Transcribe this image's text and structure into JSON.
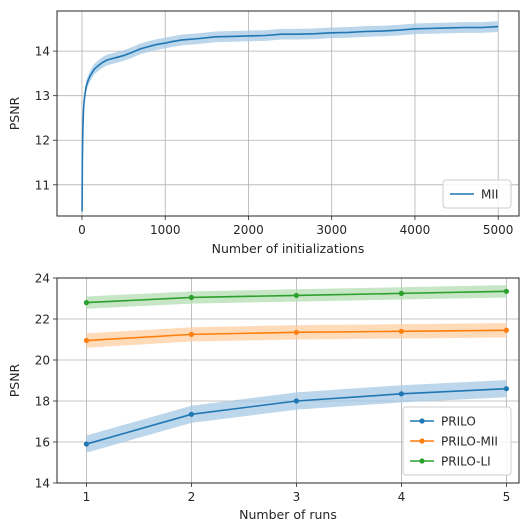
{
  "chart_data": [
    {
      "type": "line",
      "xlabel": "Number of initializations",
      "ylabel": "PSNR",
      "xlim": [
        -300,
        5250
      ],
      "ylim": [
        10.3,
        14.9
      ],
      "xticks": [
        0,
        1000,
        2000,
        3000,
        4000,
        5000
      ],
      "yticks": [
        11,
        12,
        13,
        14
      ],
      "grid": true,
      "legend_placement": "lower-right",
      "series": [
        {
          "name": "MII",
          "color": "#1f77b4",
          "band_color": "#a6c8e4",
          "x": [
            1,
            5,
            10,
            20,
            30,
            50,
            75,
            100,
            150,
            200,
            250,
            300,
            400,
            500,
            600,
            700,
            800,
            900,
            1000,
            1100,
            1200,
            1400,
            1600,
            1800,
            2000,
            2200,
            2400,
            2600,
            2800,
            3000,
            3200,
            3400,
            3600,
            3800,
            4000,
            4200,
            4400,
            4600,
            4800,
            5000
          ],
          "y": [
            10.4,
            11.6,
            12.2,
            12.75,
            12.95,
            13.2,
            13.35,
            13.45,
            13.6,
            13.68,
            13.75,
            13.8,
            13.85,
            13.9,
            13.97,
            14.05,
            14.1,
            14.15,
            14.18,
            14.22,
            14.25,
            14.28,
            14.32,
            14.33,
            14.34,
            14.35,
            14.38,
            14.38,
            14.39,
            14.41,
            14.42,
            14.44,
            14.45,
            14.47,
            14.5,
            14.51,
            14.52,
            14.53,
            14.53,
            14.55
          ],
          "band": 0.12
        }
      ]
    },
    {
      "type": "line",
      "xlabel": "Number of runs",
      "ylabel": "PSNR",
      "xlim": [
        0.72,
        5.12
      ],
      "ylim": [
        14,
        24
      ],
      "xticks": [
        1,
        2,
        3,
        4,
        5
      ],
      "yticks": [
        14,
        16,
        18,
        20,
        22,
        24
      ],
      "grid": true,
      "legend_placement": "lower-right",
      "series": [
        {
          "name": "PRILO",
          "color": "#1f77b4",
          "band_color": "#a6c8e4",
          "x": [
            1,
            2,
            3,
            4,
            5
          ],
          "y": [
            15.9,
            17.35,
            18.0,
            18.35,
            18.6
          ],
          "band": 0.42
        },
        {
          "name": "PRILO-MII",
          "color": "#ff7f0e",
          "band_color": "#ffcfa3",
          "x": [
            1,
            2,
            3,
            4,
            5
          ],
          "y": [
            20.95,
            21.25,
            21.35,
            21.4,
            21.45
          ],
          "band": 0.35
        },
        {
          "name": "PRILO-LI",
          "color": "#2ca02c",
          "band_color": "#b3deb3",
          "x": [
            1,
            2,
            3,
            4,
            5
          ],
          "y": [
            22.8,
            23.05,
            23.15,
            23.25,
            23.35
          ],
          "band": 0.3
        }
      ]
    }
  ]
}
